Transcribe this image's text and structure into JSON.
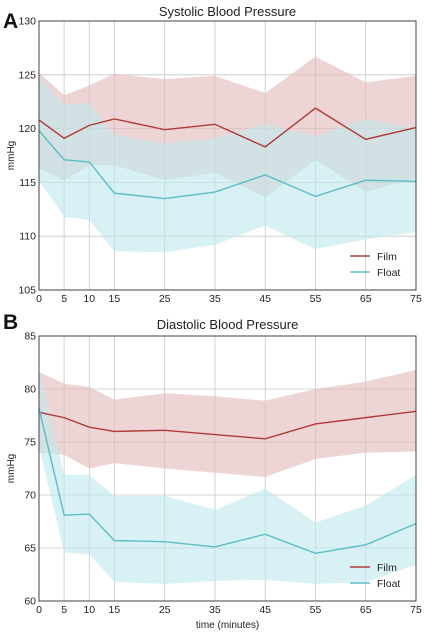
{
  "chart_data": [
    {
      "panel": "A",
      "type": "line",
      "title": "Systolic Blood Pressure",
      "xlabel": "",
      "ylabel": "mmHg",
      "x": [
        0,
        5,
        10,
        15,
        25,
        35,
        45,
        55,
        65,
        75
      ],
      "xlim": [
        0,
        75
      ],
      "ylim": [
        105,
        130
      ],
      "yticks": [
        105,
        110,
        115,
        120,
        125,
        130
      ],
      "grid": true,
      "legend": "bottom-right",
      "series": [
        {
          "name": "Film",
          "color": "#b03a3a",
          "band_color": "#e3bcbc",
          "values": [
            120.8,
            119.1,
            120.3,
            120.9,
            119.9,
            120.4,
            118.3,
            121.9,
            119.0,
            120.1
          ],
          "upper": [
            125.2,
            123.1,
            124.0,
            125.1,
            124.6,
            124.9,
            123.3,
            126.7,
            124.3,
            124.9
          ],
          "lower": [
            116.3,
            115.2,
            116.6,
            116.6,
            115.2,
            115.9,
            113.6,
            117.1,
            114.1,
            115.4
          ]
        },
        {
          "name": "Float",
          "color": "#5bbdc7",
          "band_color": "#bfe9ee",
          "values": [
            119.8,
            117.1,
            116.9,
            114.0,
            113.5,
            114.1,
            115.7,
            113.7,
            115.2,
            115.1
          ],
          "upper": [
            124.8,
            122.2,
            122.4,
            119.4,
            118.6,
            119.1,
            120.4,
            119.3,
            120.9,
            120.0
          ],
          "lower": [
            115.2,
            111.8,
            111.5,
            108.6,
            108.5,
            109.2,
            111.0,
            108.8,
            109.7,
            110.4
          ]
        }
      ]
    },
    {
      "panel": "B",
      "type": "line",
      "title": "Diastolic Blood Pressure",
      "xlabel": "time (minutes)",
      "ylabel": "mmHg",
      "x": [
        0,
        5,
        10,
        15,
        25,
        35,
        45,
        55,
        65,
        75
      ],
      "xlim": [
        0,
        75
      ],
      "ylim": [
        60,
        85
      ],
      "yticks": [
        60,
        65,
        70,
        75,
        80,
        85
      ],
      "grid": true,
      "legend": "bottom-right",
      "series": [
        {
          "name": "Film",
          "color": "#b03a3a",
          "band_color": "#e3bcbc",
          "values": [
            77.8,
            77.3,
            76.4,
            76.0,
            76.1,
            75.7,
            75.3,
            76.7,
            77.3,
            77.9
          ],
          "upper": [
            81.6,
            80.5,
            80.2,
            79.0,
            79.6,
            79.3,
            78.9,
            80.0,
            80.7,
            81.8
          ],
          "lower": [
            74.0,
            73.8,
            72.5,
            73.0,
            72.5,
            72.1,
            71.7,
            73.4,
            74.0,
            74.1
          ]
        },
        {
          "name": "Float",
          "color": "#5bbdc7",
          "band_color": "#bfe9ee",
          "values": [
            78.2,
            68.1,
            68.2,
            65.7,
            65.6,
            65.1,
            66.3,
            64.5,
            65.3,
            67.3
          ],
          "upper": [
            81.9,
            71.9,
            71.9,
            69.9,
            69.9,
            68.6,
            70.6,
            67.4,
            69.0,
            71.9
          ],
          "lower": [
            74.6,
            64.6,
            64.4,
            61.8,
            61.6,
            61.9,
            62.0,
            61.6,
            61.8,
            63.4
          ]
        }
      ]
    }
  ]
}
